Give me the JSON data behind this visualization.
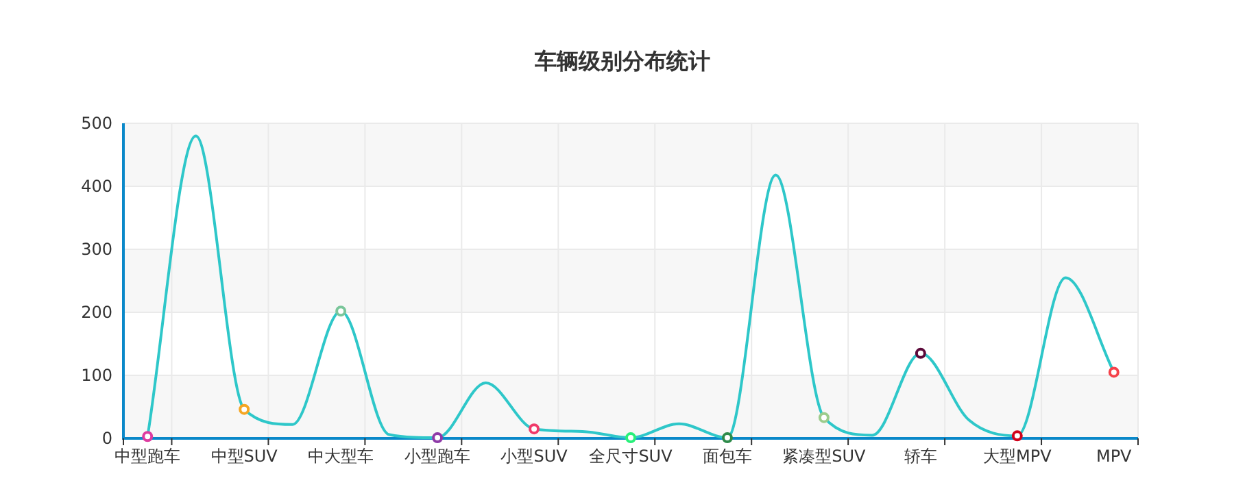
{
  "chart_data": {
    "type": "line",
    "title": "车辆级别分布统计",
    "categories": [
      "中型跑车",
      null,
      "中型SUV",
      null,
      "中大型车",
      null,
      "小型跑车",
      null,
      "小型SUV",
      null,
      "全尺寸SUV",
      null,
      "面包车",
      null,
      "紧凑型SUV",
      null,
      "轿车",
      null,
      "大型MPV",
      null,
      "MPV"
    ],
    "values": [
      3,
      480,
      46,
      22,
      202,
      6,
      1,
      88,
      15,
      11,
      1,
      23,
      1,
      418,
      33,
      5,
      135,
      29,
      4,
      255,
      105
    ],
    "color": "#2ec7c9",
    "colors": [
      "#dd3ca0",
      null,
      "#f5a623",
      null,
      "#7ac69a",
      null,
      "#8e3aa8",
      null,
      "#f03a6a",
      null,
      "#28f07a",
      null,
      "#2e8b4a",
      null,
      "#9ccc8c",
      null,
      "#5c0a3a",
      null,
      "#d0021b",
      null,
      "#f5424a"
    ],
    "marker": "circle",
    "ylim": [
      0,
      500
    ],
    "yticks": [
      0,
      100,
      200,
      300,
      400,
      500
    ],
    "grid": true
  }
}
